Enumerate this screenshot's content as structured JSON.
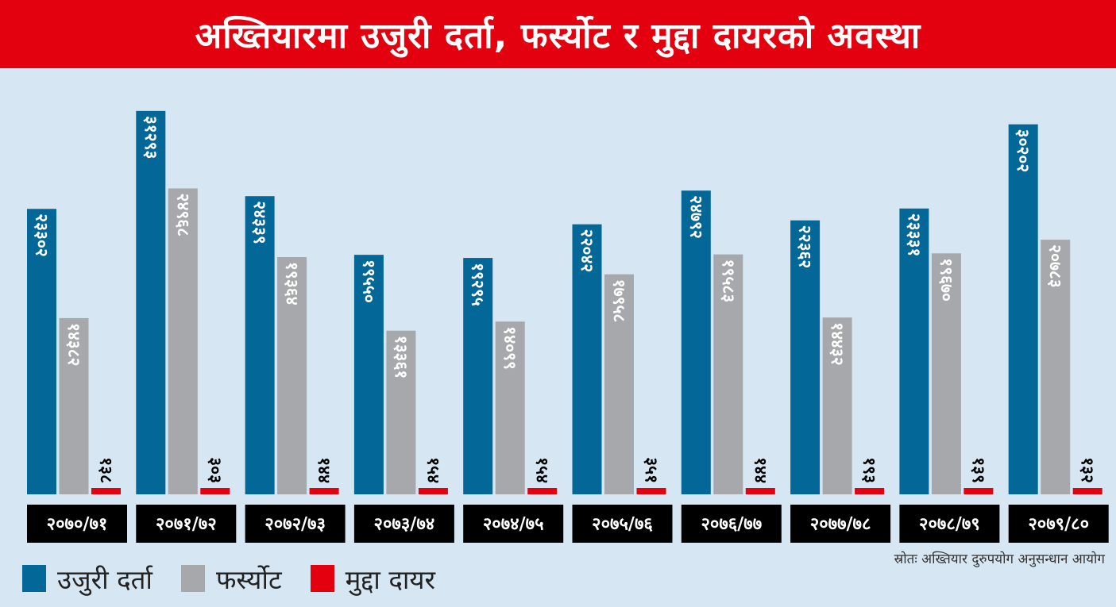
{
  "title": "अख्तियारमा उजुरी दर्ता, फर्स्योट र मुद्दा दायरको अवस्था",
  "source": "स्रोतः अख्तियार दुरुपयोग अनुसन्धान आयोग",
  "colors": {
    "banner": "#e3000f",
    "background": "#d6e7f3",
    "ujuri": "#036897",
    "farsyot": "#a6a8ab",
    "mudda": "#e3000f",
    "year_box": "#000000"
  },
  "legend": [
    {
      "label": "उजुरी दर्ता",
      "color": "#036897"
    },
    {
      "label": "फर्स्योट",
      "color": "#a6a8ab"
    },
    {
      "label": "मुद्दा दायर",
      "color": "#e3000f"
    }
  ],
  "chart_data": {
    "type": "bar",
    "categories": [
      "२०७०/७१",
      "२०७१/७२",
      "२०७२/७३",
      "२०७३/७४",
      "२०७४/७५",
      "२०७५/७६",
      "२०७६/७७",
      "२०७७/७८",
      "२०७८/७९",
      "२०७९/८०"
    ],
    "series": [
      {
        "name": "उजुरी दर्ता",
        "values": [
          23302,
          31293,
          24339,
          19550,
          19295,
          22042,
          24792,
          22362,
          23331,
          30202
        ],
        "labels": [
          "२३३०२",
          "३१२९३",
          "२४३३९",
          "१९५५०",
          "१९२९५",
          "२२०४२",
          "२४७९२",
          "२२३६२",
          "२३३३१",
          "३०२०२"
        ]
      },
      {
        "name": "फर्स्योट",
        "values": [
          14382,
          24968,
          19364,
          13361,
          14099,
          17958,
          19583,
          14432,
          19670,
          20783
        ],
        "labels": [
          "१४३८२",
          "२४९६८",
          "१९३६४",
          "१३३६१",
          "१४०९९",
          "१७९५८",
          "१९५८३",
          "१४४३२",
          "१९६७०",
          "२०७८३"
        ]
      },
      {
        "name": "मुद्दा दायर",
        "values": [
          138,
          303,
          144,
          154,
          154,
          351,
          144,
          193,
          139,
          132
        ],
        "labels": [
          "१३८",
          "३०३",
          "१४४",
          "१५४",
          "१५४",
          "३५१",
          "१४४",
          "१९३",
          "१३९",
          "१३२"
        ]
      }
    ],
    "ylim": [
      0,
      32000
    ],
    "grid": false,
    "legend_position": "bottom-left"
  }
}
